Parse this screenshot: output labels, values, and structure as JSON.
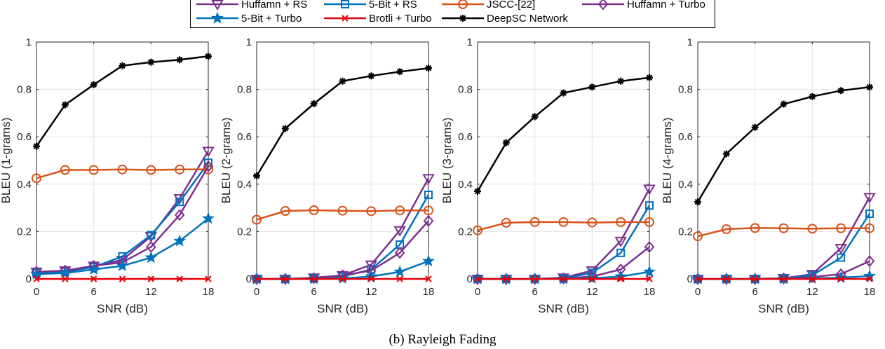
{
  "caption": "(b)  Rayleigh Fading",
  "legend": [
    {
      "name": "Huffamn + RS",
      "color": "#7E2F8E",
      "marker": "triangle-down-icon"
    },
    {
      "name": "5-Bit + RS",
      "color": "#0072BD",
      "marker": "square-icon"
    },
    {
      "name": "JSCC-[22]",
      "color": "#D95319",
      "marker": "circle-icon"
    },
    {
      "name": "Huffamn + Turbo",
      "color": "#7E2F8E",
      "marker": "diamond-icon"
    },
    {
      "name": "5-Bit + Turbo",
      "color": "#0072BD",
      "marker": "star-icon"
    },
    {
      "name": "Brotli + Turbo",
      "color": "#E8000B",
      "marker": "x-icon"
    },
    {
      "name": "DeepSC Network",
      "color": "#000000",
      "marker": "asterisk-icon"
    }
  ],
  "chart_data": [
    {
      "type": "line",
      "xlabel": "SNR (dB)",
      "ylabel": "BLEU (1-grams)",
      "xlim": [
        0,
        18
      ],
      "ylim": [
        0,
        1
      ],
      "xticks": [
        0,
        6,
        12,
        18
      ],
      "yticks": [
        0,
        0.2,
        0.4,
        0.6,
        0.8,
        1
      ],
      "grid": true,
      "x": [
        0,
        3,
        6,
        9,
        12,
        15,
        18
      ],
      "series": [
        {
          "name": "Huffamn + RS",
          "values": [
            0.03,
            0.035,
            0.055,
            0.08,
            0.18,
            0.34,
            0.54
          ]
        },
        {
          "name": "5-Bit + RS",
          "values": [
            0.025,
            0.03,
            0.05,
            0.095,
            0.185,
            0.325,
            0.49
          ]
        },
        {
          "name": "JSCC-[22]",
          "values": [
            0.425,
            0.46,
            0.46,
            0.462,
            0.46,
            0.462,
            0.462
          ]
        },
        {
          "name": "Huffamn + Turbo",
          "values": [
            0.03,
            0.035,
            0.055,
            0.07,
            0.135,
            0.27,
            0.475
          ]
        },
        {
          "name": "5-Bit + Turbo",
          "values": [
            0.02,
            0.025,
            0.04,
            0.055,
            0.09,
            0.16,
            0.255
          ]
        },
        {
          "name": "Brotli + Turbo",
          "values": [
            0,
            0,
            0,
            0,
            0,
            0,
            0
          ]
        },
        {
          "name": "DeepSC Network",
          "values": [
            0.56,
            0.735,
            0.82,
            0.9,
            0.915,
            0.925,
            0.94
          ]
        }
      ]
    },
    {
      "type": "line",
      "xlabel": "SNR (dB)",
      "ylabel": "BLEU (2-grams)",
      "xlim": [
        0,
        18
      ],
      "ylim": [
        0,
        1
      ],
      "xticks": [
        0,
        6,
        12,
        18
      ],
      "yticks": [
        0,
        0.2,
        0.4,
        0.6,
        0.8,
        1
      ],
      "grid": true,
      "x": [
        0,
        3,
        6,
        9,
        12,
        15,
        18
      ],
      "series": [
        {
          "name": "Huffamn + RS",
          "values": [
            0,
            0,
            0.005,
            0.015,
            0.06,
            0.205,
            0.425
          ]
        },
        {
          "name": "5-Bit + RS",
          "values": [
            0,
            0,
            0.003,
            0.01,
            0.04,
            0.145,
            0.355
          ]
        },
        {
          "name": "JSCC-[22]",
          "values": [
            0.25,
            0.287,
            0.29,
            0.288,
            0.286,
            0.289,
            0.289
          ]
        },
        {
          "name": "Huffamn + Turbo",
          "values": [
            0,
            0,
            0.003,
            0.015,
            0.035,
            0.11,
            0.245
          ]
        },
        {
          "name": "5-Bit + Turbo",
          "values": [
            0,
            0,
            0,
            0.002,
            0.01,
            0.03,
            0.075
          ]
        },
        {
          "name": "Brotli + Turbo",
          "values": [
            0,
            0,
            0,
            0,
            0,
            0,
            0
          ]
        },
        {
          "name": "DeepSC Network",
          "values": [
            0.435,
            0.635,
            0.74,
            0.835,
            0.857,
            0.875,
            0.89
          ]
        }
      ]
    },
    {
      "type": "line",
      "xlabel": "SNR (dB)",
      "ylabel": "BLEU (3-grams)",
      "xlim": [
        0,
        18
      ],
      "ylim": [
        0,
        1
      ],
      "xticks": [
        0,
        6,
        12,
        18
      ],
      "yticks": [
        0,
        0.2,
        0.4,
        0.6,
        0.8,
        1
      ],
      "grid": true,
      "x": [
        0,
        3,
        6,
        9,
        12,
        15,
        18
      ],
      "series": [
        {
          "name": "Huffamn + RS",
          "values": [
            0,
            0,
            0,
            0.005,
            0.035,
            0.16,
            0.38
          ]
        },
        {
          "name": "5-Bit + RS",
          "values": [
            0,
            0,
            0,
            0.003,
            0.025,
            0.11,
            0.31
          ]
        },
        {
          "name": "JSCC-[22]",
          "values": [
            0.205,
            0.237,
            0.24,
            0.24,
            0.238,
            0.24,
            0.24
          ]
        },
        {
          "name": "Huffamn + Turbo",
          "values": [
            0,
            0,
            0,
            0.002,
            0.01,
            0.04,
            0.135
          ]
        },
        {
          "name": "5-Bit + Turbo",
          "values": [
            0,
            0,
            0,
            0,
            0.003,
            0.01,
            0.03
          ]
        },
        {
          "name": "Brotli + Turbo",
          "values": [
            0,
            0,
            0,
            0,
            0,
            0,
            0
          ]
        },
        {
          "name": "DeepSC Network",
          "values": [
            0.37,
            0.575,
            0.685,
            0.785,
            0.81,
            0.835,
            0.85
          ]
        }
      ]
    },
    {
      "type": "line",
      "xlabel": "SNR (dB)",
      "ylabel": "BLEU (4-grams)",
      "xlim": [
        0,
        18
      ],
      "ylim": [
        0,
        1
      ],
      "xticks": [
        0,
        6,
        12,
        18
      ],
      "yticks": [
        0,
        0.2,
        0.4,
        0.6,
        0.8,
        1
      ],
      "grid": true,
      "x": [
        0,
        3,
        6,
        9,
        12,
        15,
        18
      ],
      "series": [
        {
          "name": "Huffamn + RS",
          "values": [
            0,
            0,
            0,
            0.003,
            0.02,
            0.13,
            0.345
          ]
        },
        {
          "name": "5-Bit + RS",
          "values": [
            0,
            0,
            0,
            0.002,
            0.015,
            0.09,
            0.275
          ]
        },
        {
          "name": "JSCC-[22]",
          "values": [
            0.18,
            0.21,
            0.215,
            0.214,
            0.212,
            0.214,
            0.214
          ]
        },
        {
          "name": "Huffamn + Turbo",
          "values": [
            0,
            0,
            0,
            0.002,
            0.008,
            0.02,
            0.075
          ]
        },
        {
          "name": "5-Bit + Turbo",
          "values": [
            0,
            0,
            0,
            0,
            0.002,
            0.005,
            0.012
          ]
        },
        {
          "name": "Brotli + Turbo",
          "values": [
            0,
            0,
            0,
            0,
            0,
            0,
            0
          ]
        },
        {
          "name": "DeepSC Network",
          "values": [
            0.325,
            0.528,
            0.64,
            0.738,
            0.77,
            0.795,
            0.81
          ]
        }
      ]
    }
  ]
}
